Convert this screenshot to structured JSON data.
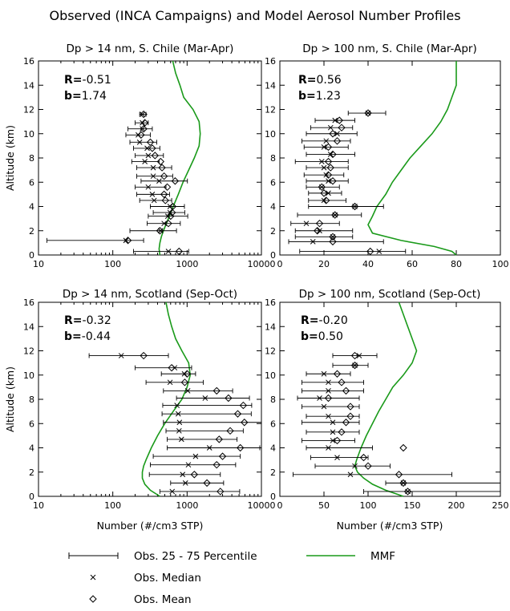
{
  "figure": {
    "title": "Observed (INCA Campaigns) and Model Aerosol Number Profiles",
    "ylabel": "Altitude (km)",
    "xlabel": "Number (#/cm3 STP)",
    "model_color": "#1a9a1a"
  },
  "legend": {
    "range_label": "Obs. 25 - 75 Percentile",
    "median_label": "Obs. Median",
    "mean_label": "Obs. Mean",
    "model_label": "MMF"
  },
  "chart_data": [
    {
      "type": "scatter",
      "id": "p1",
      "title": "Dp > 14 nm, S. Chile (Mar-Apr)",
      "xscale": "log",
      "xlim": [
        10,
        10000
      ],
      "xticks": [
        10,
        100,
        1000,
        10000
      ],
      "xticklabels": [
        "10",
        "100",
        "1000",
        "10000"
      ],
      "ylim": [
        0,
        16
      ],
      "yticks": [
        0,
        2,
        4,
        6,
        8,
        10,
        12,
        14,
        16
      ],
      "yticklabels": [
        "0",
        "2",
        "4",
        "6",
        "8",
        "10",
        "12",
        "14",
        "16"
      ],
      "stats": {
        "r_label": "R=",
        "r_value": "-0.51",
        "b_label": "b=",
        "b_value": "1.74"
      },
      "altitude": [
        0.3,
        1.2,
        2.0,
        2.6,
        3.2,
        3.5,
        4.0,
        4.5,
        5.0,
        5.6,
        6.1,
        6.5,
        7.2,
        7.7,
        8.2,
        8.8,
        9.3,
        9.9,
        10.4,
        10.9,
        11.6
      ],
      "median": [
        560,
        150,
        440,
        490,
        550,
        590,
        590,
        360,
        340,
        300,
        420,
        350,
        350,
        270,
        300,
        290,
        230,
        220,
        250,
        250,
        250
      ],
      "mean": [
        780,
        160,
        430,
        560,
        600,
        630,
        640,
        510,
        490,
        540,
        690,
        490,
        460,
        440,
        370,
        340,
        320,
        240,
        260,
        270,
        260
      ],
      "p25": [
        190,
        13,
        170,
        290,
        300,
        350,
        320,
        230,
        210,
        200,
        240,
        210,
        210,
        180,
        200,
        190,
        170,
        150,
        160,
        200,
        230
      ],
      "p75": [
        1050,
        260,
        720,
        810,
        1020,
        930,
        920,
        620,
        580,
        520,
        1010,
        640,
        620,
        420,
        480,
        430,
        390,
        320,
        340,
        300,
        280
      ],
      "model": {
        "altitude": [
          0,
          0.5,
          1,
          1.5,
          2,
          3,
          4,
          5,
          6,
          7,
          8,
          9,
          10,
          11,
          12,
          13,
          14,
          15,
          16
        ],
        "values": [
          430,
          420,
          430,
          450,
          480,
          560,
          650,
          760,
          880,
          1050,
          1250,
          1450,
          1500,
          1450,
          1200,
          900,
          800,
          700,
          640
        ]
      }
    },
    {
      "type": "scatter",
      "id": "p2",
      "title": "Dp > 100 nm, S. Chile (Mar-Apr)",
      "xscale": "linear",
      "xlim": [
        0,
        100
      ],
      "xticks": [
        0,
        20,
        40,
        60,
        80,
        100
      ],
      "xticklabels": [
        "0",
        "20",
        "40",
        "60",
        "80",
        "100"
      ],
      "ylim": [
        0,
        16
      ],
      "yticks": [
        0,
        2,
        4,
        6,
        8,
        10,
        12,
        14,
        16
      ],
      "yticklabels": [
        "0",
        "2",
        "4",
        "6",
        "8",
        "10",
        "12",
        "14",
        "16"
      ],
      "stats": {
        "r_label": "R=",
        "r_value": "0.56",
        "b_label": "b=",
        "b_value": "1.23"
      },
      "altitude": [
        0.3,
        1.1,
        1.5,
        2.0,
        2.6,
        3.3,
        4.0,
        4.5,
        5.1,
        5.6,
        6.1,
        6.6,
        7.2,
        7.7,
        8.3,
        8.9,
        9.4,
        10.0,
        10.5,
        11.1,
        11.7
      ],
      "median": [
        45,
        15,
        24,
        18,
        12,
        25,
        34,
        20,
        22,
        19,
        22,
        21,
        20,
        19,
        23,
        20,
        21,
        26,
        23,
        25,
        40
      ],
      "mean": [
        41,
        24,
        24,
        17,
        18,
        25,
        34,
        21,
        20,
        19,
        24,
        22,
        23,
        22,
        24,
        22,
        26,
        24,
        28,
        27,
        40
      ],
      "p25": [
        9,
        4,
        7,
        7,
        5,
        8,
        13,
        13,
        13,
        12,
        12,
        11,
        12,
        7,
        12,
        11,
        10,
        12,
        14,
        16,
        31
      ],
      "p75": [
        57,
        47,
        33,
        33,
        27,
        37,
        47,
        30,
        28,
        27,
        31,
        29,
        31,
        31,
        34,
        31,
        32,
        35,
        33,
        34,
        48
      ],
      "model": {
        "altitude": [
          0,
          0.3,
          0.7,
          1.2,
          1.8,
          2.5,
          3.2,
          4.0,
          5.0,
          6.0,
          7.0,
          8.0,
          9.0,
          10.0,
          11.0,
          12.0,
          13.0,
          14.0,
          15.0,
          16.0
        ],
        "values": [
          80,
          78,
          70,
          55,
          42,
          40,
          42,
          44,
          48,
          51,
          55,
          59,
          64,
          69,
          73,
          76,
          78,
          80,
          80,
          80
        ]
      }
    },
    {
      "type": "scatter",
      "id": "p3",
      "title": "Dp > 14 nm, Scotland (Sep-Oct)",
      "xscale": "log",
      "xlim": [
        10,
        10000
      ],
      "xticks": [
        10,
        100,
        1000,
        10000
      ],
      "xticklabels": [
        "10",
        "100",
        "1000",
        "10000"
      ],
      "ylim": [
        0,
        16
      ],
      "yticks": [
        0,
        2,
        4,
        6,
        8,
        10,
        12,
        14,
        16
      ],
      "yticklabels": [
        "0",
        "2",
        "4",
        "6",
        "8",
        "10",
        "12",
        "14",
        "16"
      ],
      "stats": {
        "r_label": "R=",
        "r_value": "-0.32",
        "b_label": "b=",
        "b_value": "-0.44"
      },
      "altitude": [
        0.4,
        1.1,
        1.8,
        2.6,
        3.3,
        4.0,
        4.7,
        5.4,
        6.1,
        6.8,
        7.5,
        8.1,
        8.7,
        9.4,
        10.1,
        10.6,
        11.6
      ],
      "median": [
        630,
        950,
        870,
        1040,
        1300,
        2000,
        840,
        780,
        790,
        760,
        730,
        1750,
        1020,
        590,
        920,
        680,
        130
      ],
      "mean": [
        2800,
        1850,
        1250,
        2500,
        3000,
        5200,
        2700,
        3800,
        5900,
        4800,
        5700,
        3600,
        2500,
        930,
        1000,
        620,
        260
      ],
      "p25": [
        430,
        600,
        310,
        320,
        350,
        540,
        540,
        520,
        480,
        460,
        470,
        720,
        480,
        280,
        450,
        200,
        48
      ],
      "p75": [
        5100,
        3100,
        2800,
        4500,
        5200,
        9500,
        4700,
        5700,
        10000,
        7300,
        7400,
        6900,
        4100,
        1650,
        1300,
        1150,
        560
      ],
      "model": {
        "altitude": [
          0,
          0.5,
          1,
          1.5,
          2,
          2.5,
          3,
          4,
          5,
          6,
          7,
          8,
          9,
          10,
          11,
          12,
          13,
          14,
          15,
          16
        ],
        "values": [
          430,
          320,
          270,
          250,
          250,
          260,
          280,
          330,
          400,
          500,
          650,
          850,
          1000,
          1100,
          1050,
          850,
          700,
          620,
          560,
          520
        ]
      }
    },
    {
      "type": "scatter",
      "id": "p4",
      "title": "Dp > 100 nm, Scotland (Sep-Oct)",
      "xscale": "linear",
      "xlim": [
        0,
        250
      ],
      "xticks": [
        0,
        50,
        100,
        150,
        200,
        250
      ],
      "xticklabels": [
        "0",
        "50",
        "100",
        "150",
        "200",
        "250"
      ],
      "ylim": [
        0,
        16
      ],
      "yticks": [
        0,
        2,
        4,
        6,
        8,
        10,
        12,
        14,
        16
      ],
      "yticklabels": [
        "0",
        "2",
        "4",
        "6",
        "8",
        "10",
        "12",
        "14",
        "16"
      ],
      "stats": {
        "r_label": "R=",
        "r_value": "-0.20",
        "b_label": "b=",
        "b_value": "0.50"
      },
      "altitude": [
        0.4,
        1.1,
        1.8,
        2.5,
        3.2,
        4.0,
        4.6,
        5.3,
        6.1,
        6.6,
        7.4,
        8.1,
        8.7,
        9.4,
        10.1,
        10.8,
        11.6
      ],
      "median": [
        145,
        140,
        80,
        85,
        65,
        55,
        60,
        60,
        60,
        55,
        50,
        45,
        55,
        55,
        50,
        85,
        90
      ],
      "mean": [
        145,
        140,
        135,
        100,
        95,
        140,
        65,
        70,
        75,
        80,
        80,
        55,
        75,
        70,
        65,
        85,
        85
      ],
      "p25": [
        95,
        120,
        15,
        40,
        35,
        30,
        25,
        30,
        25,
        30,
        25,
        20,
        25,
        25,
        30,
        60,
        60
      ],
      "p75": [
        250,
        250,
        195,
        125,
        100,
        105,
        85,
        90,
        90,
        90,
        90,
        90,
        95,
        95,
        80,
        100,
        110
      ],
      "model": {
        "altitude": [
          0,
          0.5,
          1,
          1.5,
          2,
          2.5,
          3,
          4,
          5,
          6,
          7,
          8,
          9,
          10,
          11,
          12,
          13,
          14,
          15,
          16
        ],
        "values": [
          140,
          120,
          105,
          95,
          88,
          85,
          87,
          92,
          98,
          105,
          112,
          120,
          128,
          140,
          150,
          155,
          150,
          145,
          140,
          135
        ]
      }
    }
  ]
}
